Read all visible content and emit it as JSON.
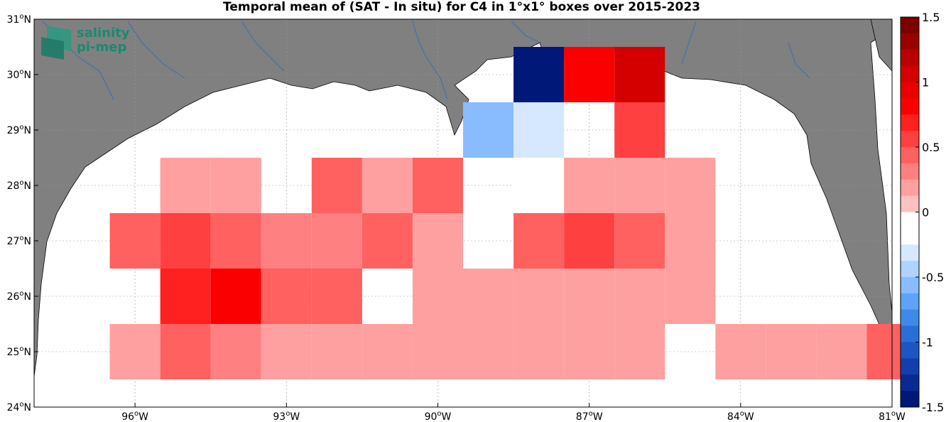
{
  "title": "Temporal mean of (SAT - In situ) for C4 in 1°x1° boxes over 2015-2023",
  "logo": {
    "line1": "salinity",
    "line2": "pi-mep"
  },
  "map": {
    "lon_range": [
      -98,
      -81
    ],
    "lat_range": [
      24,
      31
    ],
    "land_color": "#808080",
    "ocean_color": "#ffffff",
    "river_color": "#3a6fb0",
    "lon_ticks": [
      {
        "value": -96,
        "deg": "96",
        "hemi": "W"
      },
      {
        "value": -93,
        "deg": "93",
        "hemi": "W"
      },
      {
        "value": -90,
        "deg": "90",
        "hemi": "W"
      },
      {
        "value": -87,
        "deg": "87",
        "hemi": "W"
      },
      {
        "value": -84,
        "deg": "84",
        "hemi": "W"
      },
      {
        "value": -81,
        "deg": "81",
        "hemi": "W"
      }
    ],
    "lat_ticks": [
      {
        "value": 24,
        "deg": "24",
        "hemi": "N"
      },
      {
        "value": 25,
        "deg": "25",
        "hemi": "N"
      },
      {
        "value": 26,
        "deg": "26",
        "hemi": "N"
      },
      {
        "value": 27,
        "deg": "27",
        "hemi": "N"
      },
      {
        "value": 28,
        "deg": "28",
        "hemi": "N"
      },
      {
        "value": 29,
        "deg": "29",
        "hemi": "N"
      },
      {
        "value": 30,
        "deg": "30",
        "hemi": "N"
      },
      {
        "value": 31,
        "deg": "31",
        "hemi": "N"
      }
    ]
  },
  "chart_data": {
    "type": "heatmap",
    "title": "Temporal mean of (SAT - In situ) for C4 in 1°x1° boxes over 2015-2023",
    "cell_size_deg": 1,
    "cells": [
      {
        "lon": -88,
        "lat": 30,
        "value": -1.5
      },
      {
        "lon": -87,
        "lat": 30,
        "value": 0.85
      },
      {
        "lon": -86,
        "lat": 30,
        "value": 1.05
      },
      {
        "lon": -89,
        "lat": 29,
        "value": -0.55
      },
      {
        "lon": -88,
        "lat": 29,
        "value": -0.35
      },
      {
        "lon": -86,
        "lat": 29,
        "value": 0.55
      },
      {
        "lon": -95,
        "lat": 28,
        "value": 0.25
      },
      {
        "lon": -94,
        "lat": 28,
        "value": 0.15
      },
      {
        "lon": -92,
        "lat": 28,
        "value": 0.45
      },
      {
        "lon": -91,
        "lat": 28,
        "value": 0.15
      },
      {
        "lon": -90,
        "lat": 28,
        "value": 0.45
      },
      {
        "lon": -88,
        "lat": 28,
        "value": -0.15
      },
      {
        "lon": -87,
        "lat": 28,
        "value": 0.25
      },
      {
        "lon": -86,
        "lat": 28,
        "value": 0.25
      },
      {
        "lon": -85,
        "lat": 28,
        "value": 0.25
      },
      {
        "lon": -96,
        "lat": 27,
        "value": 0.45
      },
      {
        "lon": -95,
        "lat": 27,
        "value": 0.55
      },
      {
        "lon": -94,
        "lat": 27,
        "value": 0.45
      },
      {
        "lon": -93,
        "lat": 27,
        "value": 0.35
      },
      {
        "lon": -92,
        "lat": 27,
        "value": 0.35
      },
      {
        "lon": -91,
        "lat": 27,
        "value": 0.45
      },
      {
        "lon": -90,
        "lat": 27,
        "value": 0.25
      },
      {
        "lon": -88,
        "lat": 27,
        "value": 0.45
      },
      {
        "lon": -87,
        "lat": 27,
        "value": 0.55
      },
      {
        "lon": -86,
        "lat": 27,
        "value": 0.45
      },
      {
        "lon": -85,
        "lat": 27,
        "value": 0.25
      },
      {
        "lon": -95,
        "lat": 26,
        "value": 0.75
      },
      {
        "lon": -94,
        "lat": 26,
        "value": 0.85
      },
      {
        "lon": -93,
        "lat": 26,
        "value": 0.45
      },
      {
        "lon": -92,
        "lat": 26,
        "value": 0.45
      },
      {
        "lon": -90,
        "lat": 26,
        "value": 0.25
      },
      {
        "lon": -89,
        "lat": 26,
        "value": 0.15
      },
      {
        "lon": -88,
        "lat": 26,
        "value": 0.15
      },
      {
        "lon": -87,
        "lat": 26,
        "value": 0.15
      },
      {
        "lon": -86,
        "lat": 26,
        "value": 0.15
      },
      {
        "lon": -85,
        "lat": 26,
        "value": 0.25
      },
      {
        "lon": -96,
        "lat": 25,
        "value": 0.15
      },
      {
        "lon": -95,
        "lat": 25,
        "value": 0.45
      },
      {
        "lon": -94,
        "lat": 25,
        "value": 0.35
      },
      {
        "lon": -93,
        "lat": 25,
        "value": 0.15
      },
      {
        "lon": -92,
        "lat": 25,
        "value": 0.15
      },
      {
        "lon": -91,
        "lat": 25,
        "value": 0.15
      },
      {
        "lon": -90,
        "lat": 25,
        "value": 0.25
      },
      {
        "lon": -89,
        "lat": 25,
        "value": 0.15
      },
      {
        "lon": -88,
        "lat": 25,
        "value": 0.25
      },
      {
        "lon": -87,
        "lat": 25,
        "value": 0.25
      },
      {
        "lon": -86,
        "lat": 25,
        "value": 0.25
      },
      {
        "lon": -84,
        "lat": 25,
        "value": 0.25
      },
      {
        "lon": -83,
        "lat": 25,
        "value": 0.25
      },
      {
        "lon": -82,
        "lat": 25,
        "value": 0.15
      },
      {
        "lon": -81,
        "lat": 25,
        "value": 0.45
      }
    ],
    "colorbar": {
      "min": -1.5,
      "max": 1.5,
      "step": 0.125,
      "tick_labels": [
        "1.5",
        "1",
        "0.5",
        "0",
        "-0.5",
        "-1",
        "-1.5"
      ],
      "tick_values": [
        1.5,
        1,
        0.5,
        0,
        -0.5,
        -1,
        -1.5
      ],
      "colors_top_to_bottom": [
        "#7a0000",
        "#9a0000",
        "#b80000",
        "#d40000",
        "#e80000",
        "#fb0000",
        "#ff2020",
        "#ff4040",
        "#ff6060",
        "#ff8080",
        "#ffa0a0",
        "#ffc0c0",
        "#ffffff",
        "#ffffff",
        "#d6e8ff",
        "#b0d2ff",
        "#88bcff",
        "#5ea3f7",
        "#3f8ae8",
        "#2a6fd6",
        "#1c56c2",
        "#123fab",
        "#0a2a92",
        "#001878"
      ]
    }
  }
}
